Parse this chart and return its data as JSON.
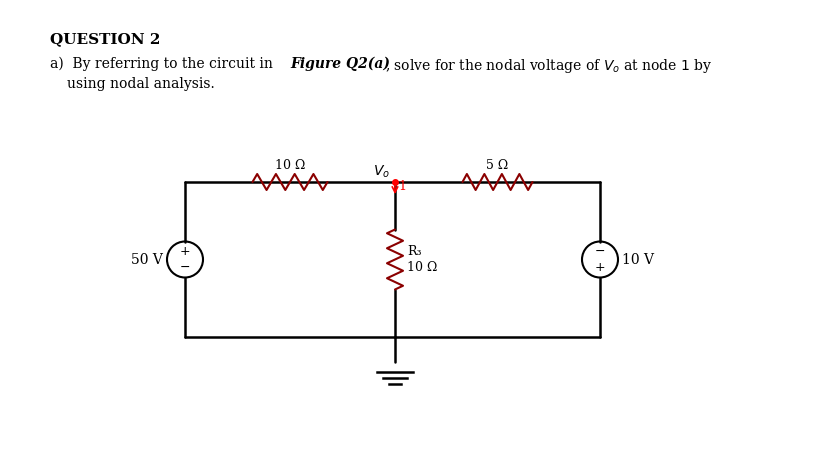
{
  "title": "QUESTION 2",
  "question_text": "a)  By referring to the circuit in Figure Q2(a), solve for the nodal voltage of $V_o$ at node 1 by\n     using nodal analysis.",
  "figure_bold": "Figure Q2(a)",
  "bg_color": "#ffffff",
  "line_color": "#000000",
  "resistor_color": "#8B0000",
  "circuit": {
    "left_source_label": "50 V",
    "r1_label": "10 Ω",
    "r2_label": "5 Ω",
    "r3_label": "R₃\n10 Ω",
    "right_source_label": "10 V",
    "node_label": "Vₒ",
    "node_label2": "1"
  }
}
